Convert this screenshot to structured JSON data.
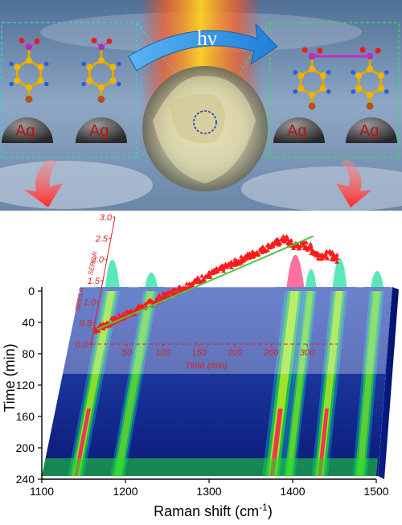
{
  "top_panel": {
    "photon_label": "hν",
    "left_labels": [
      "Ag",
      "Ag"
    ],
    "right_labels": [
      "Ag",
      "Ag"
    ]
  },
  "chart_data": [
    {
      "type": "heatmap",
      "xlabel": "Raman shift (cm",
      "xlabel_sup": "-1",
      "xlabel_close": ")",
      "ylabel": "Time (min)",
      "xlim": [
        1100,
        1500
      ],
      "ylim": [
        0,
        240
      ],
      "x_ticks": [
        1100,
        1200,
        1300,
        1400,
        1500
      ],
      "y_ticks": [
        0,
        40,
        80,
        120,
        160,
        200,
        240
      ],
      "bands": [
        {
          "center": 1140,
          "width": 9,
          "intensity": 0.85
        },
        {
          "center": 1190,
          "width": 8,
          "intensity": 0.45
        },
        {
          "center": 1375,
          "width": 11,
          "intensity": 1.0
        },
        {
          "center": 1395,
          "width": 7,
          "intensity": 0.55
        },
        {
          "center": 1432,
          "width": 9,
          "intensity": 0.9
        },
        {
          "center": 1480,
          "width": 8,
          "intensity": 0.5
        }
      ]
    },
    {
      "type": "scatter",
      "xlabel": "Time (min)",
      "ylabel": "SERS,R",
      "xlim": [
        0,
        320
      ],
      "ylim": [
        0,
        3.0
      ],
      "x_ticks": [
        0,
        50,
        100,
        150,
        200,
        250,
        300
      ],
      "y_ticks": [
        0.0,
        0.5,
        1.0,
        1.5,
        2.0,
        2.5,
        3.0
      ],
      "series": [
        {
          "color": "#ff1a1a",
          "marker": "triangle"
        }
      ],
      "fit_line": {
        "x": [
          5,
          280
        ],
        "y": [
          0.35,
          2.55
        ],
        "color": "#44cc44"
      }
    }
  ]
}
